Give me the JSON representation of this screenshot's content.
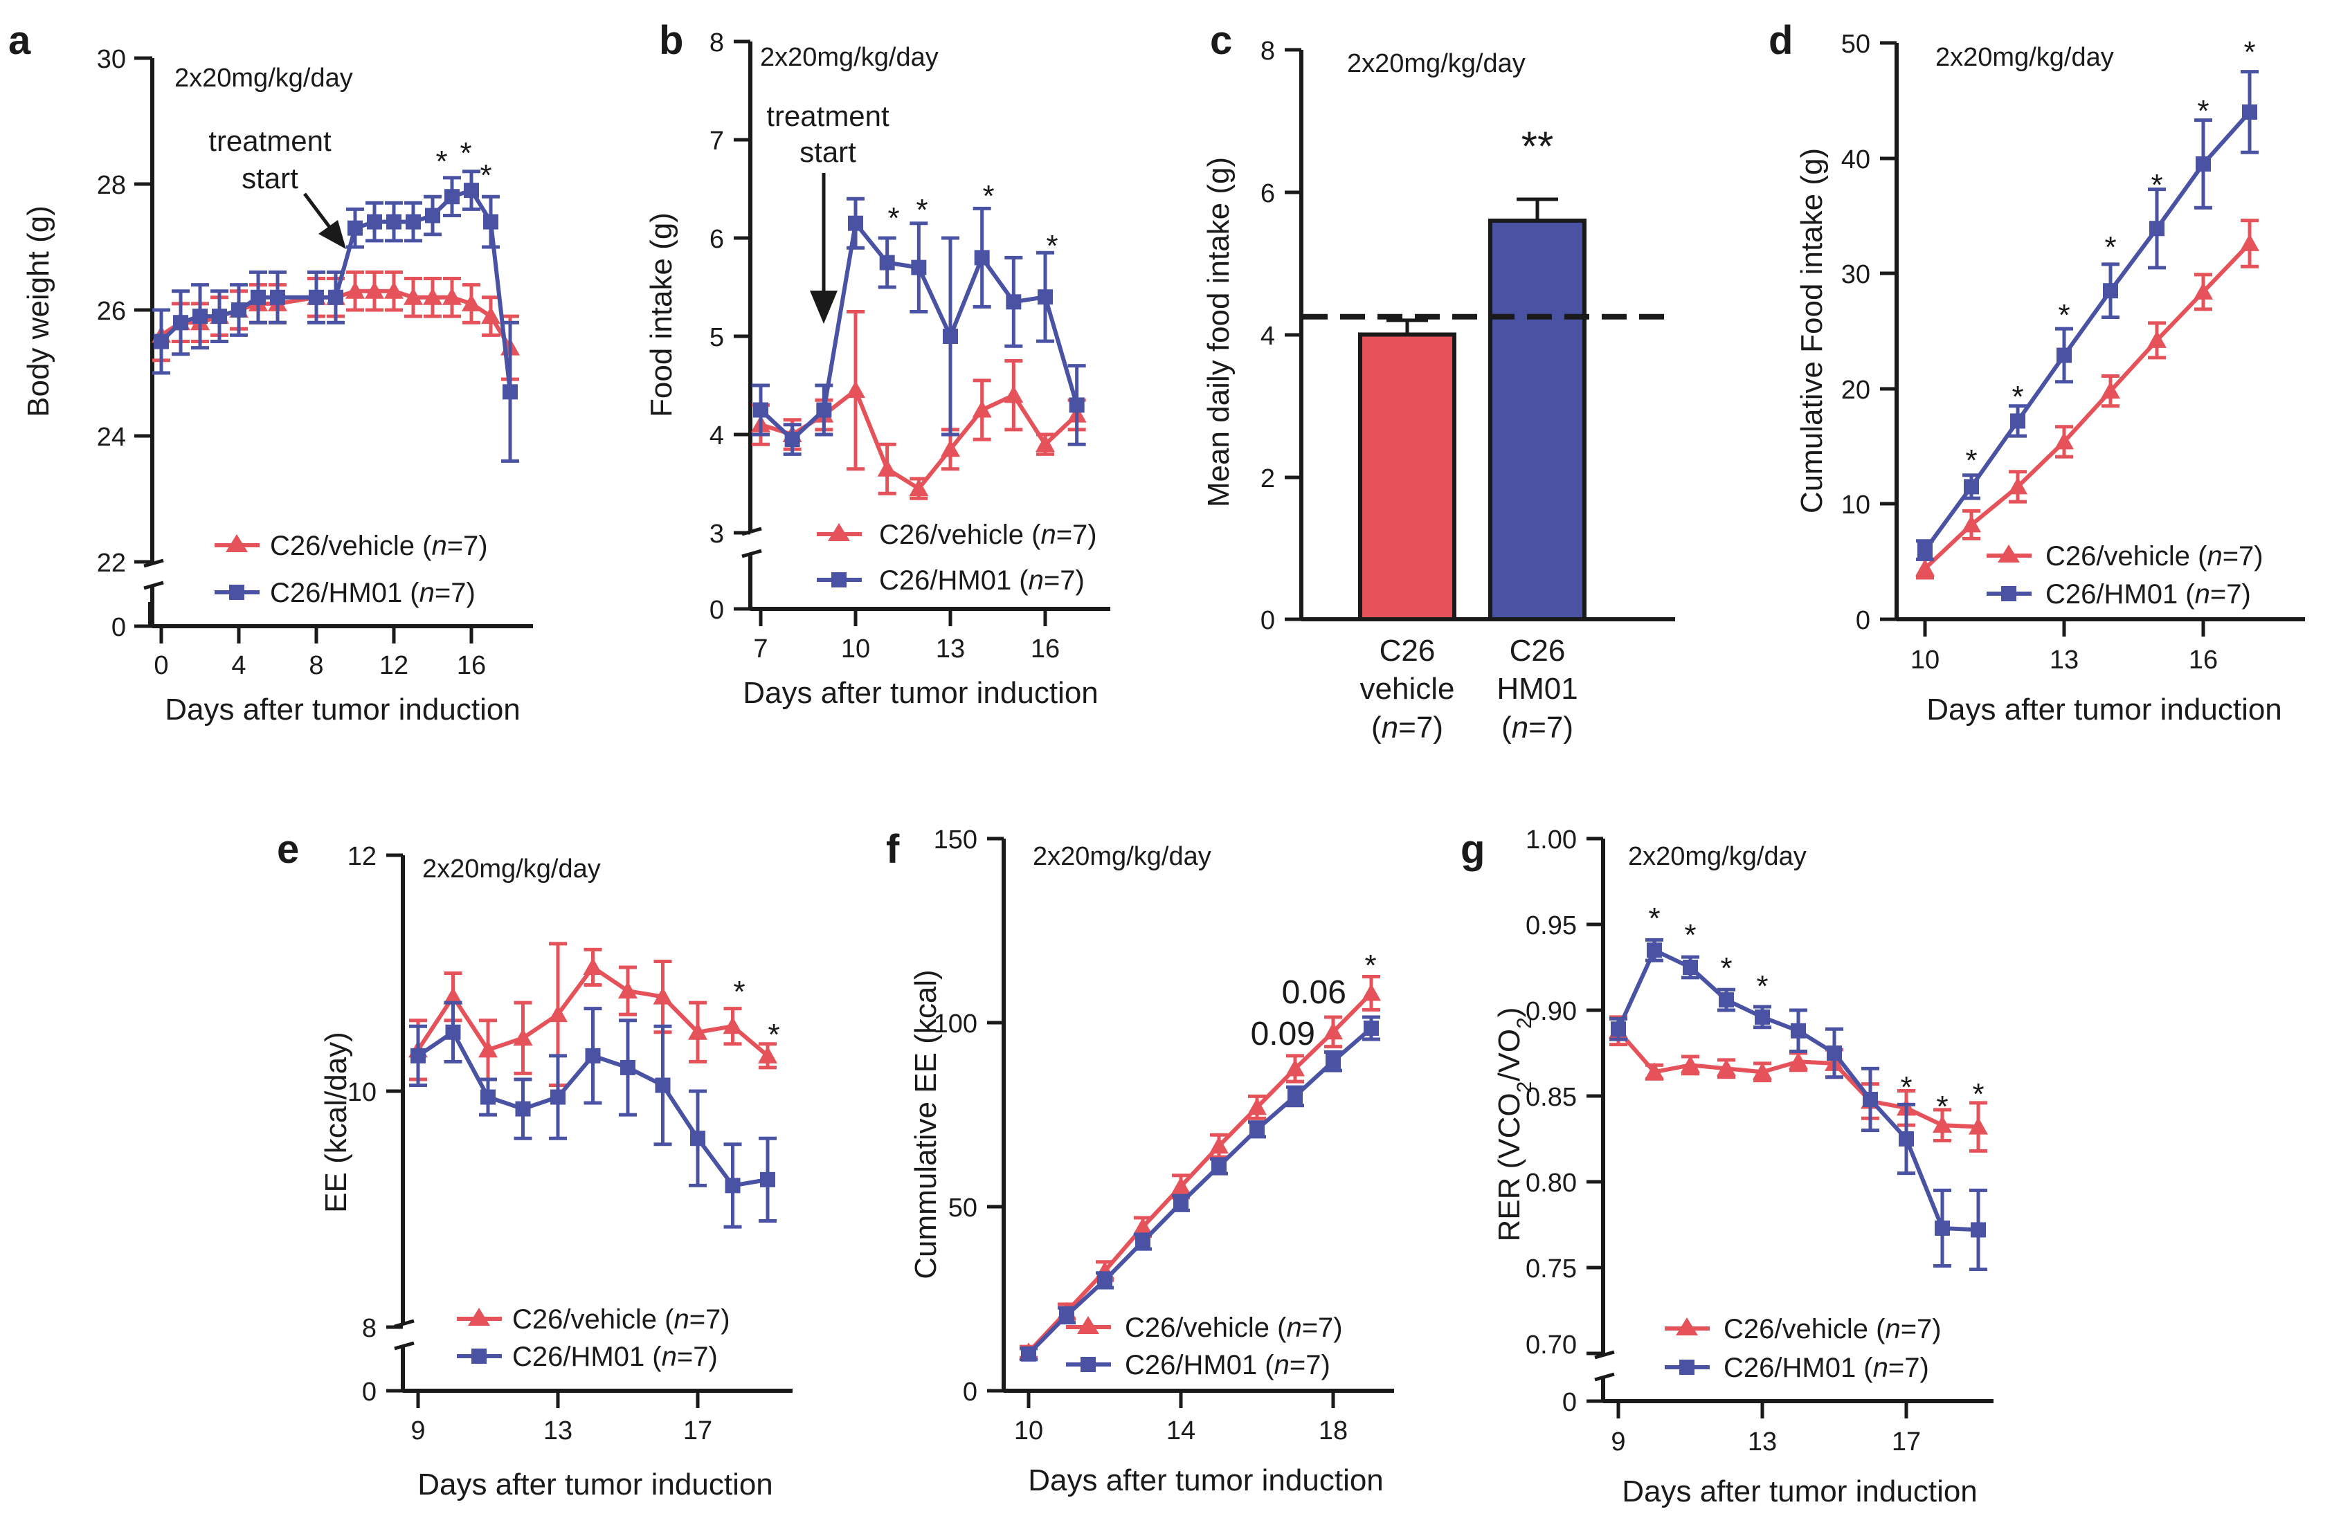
{
  "colors": {
    "vehicle": "#e5525a",
    "hm01": "#4a52a3",
    "axis": "#1a1a1a"
  },
  "charts": [
    {
      "id": "a",
      "type": "line",
      "letter": "a",
      "dose_label": "2x20mg/kg/day",
      "xlabel": "Days after tumor induction",
      "ylabel": "Body weight (g)",
      "yticks": [
        "30",
        "28",
        "26",
        "24",
        "22",
        "0"
      ],
      "xticks": [
        "0",
        "4",
        "8",
        "12",
        "16"
      ],
      "annotations": [
        "treatment",
        "start"
      ],
      "legend": [
        {
          "label": "C26/vehicle (",
          "n_italic": "n",
          "n_rest": "=7)"
        },
        {
          "label": "C26/HM01 (",
          "n_italic": "n",
          "n_rest": "=7)"
        }
      ],
      "series": [
        {
          "name": "C26/vehicle",
          "x": [
            0,
            1,
            2,
            3,
            4,
            5,
            6,
            8,
            9,
            10,
            11,
            12,
            13,
            14,
            15,
            16,
            17,
            18
          ],
          "y": [
            25.6,
            25.8,
            25.8,
            25.9,
            26.0,
            26.1,
            26.1,
            26.2,
            26.2,
            26.3,
            26.3,
            26.3,
            26.2,
            26.2,
            26.2,
            26.1,
            25.9,
            25.4
          ]
        },
        {
          "name": "C26/HM01",
          "x": [
            0,
            1,
            2,
            3,
            4,
            5,
            6,
            8,
            9,
            10,
            11,
            12,
            13,
            14,
            15,
            16,
            17,
            18
          ],
          "y": [
            25.5,
            25.8,
            25.9,
            25.9,
            26.0,
            26.2,
            26.2,
            26.2,
            26.2,
            27.3,
            27.4,
            27.4,
            27.4,
            27.5,
            27.8,
            27.9,
            27.4,
            24.7
          ]
        }
      ],
      "stars": [
        "*",
        "*",
        "*"
      ]
    },
    {
      "id": "b",
      "type": "line",
      "letter": "b",
      "dose_label": "2x20mg/kg/day",
      "xlabel": "Days after tumor induction",
      "ylabel": "Food intake (g)",
      "yticks": [
        "8",
        "7",
        "6",
        "5",
        "4",
        "3",
        "0"
      ],
      "xticks": [
        "7",
        "10",
        "13",
        "16"
      ],
      "annotations": [
        "treatment",
        "start"
      ],
      "legend": [
        {
          "label": "C26/vehicle (",
          "n_italic": "n",
          "n_rest": "=7)"
        },
        {
          "label": "C26/HM01 (",
          "n_italic": "n",
          "n_rest": "=7)"
        }
      ],
      "series": [
        {
          "name": "C26/vehicle",
          "x": [
            7,
            8,
            9,
            10,
            11,
            12,
            13,
            14,
            15,
            16,
            17
          ],
          "y": [
            4.1,
            4.0,
            4.2,
            4.45,
            3.65,
            3.45,
            3.85,
            4.25,
            4.4,
            3.9,
            4.2
          ]
        },
        {
          "name": "C26/HM01",
          "x": [
            7,
            8,
            9,
            10,
            11,
            12,
            13,
            14,
            15,
            16,
            17
          ],
          "y": [
            4.25,
            3.95,
            4.25,
            6.15,
            5.75,
            5.7,
            5.0,
            5.8,
            5.35,
            5.4,
            4.3
          ]
        }
      ],
      "stars": [
        "*",
        "*",
        "*",
        "*"
      ]
    },
    {
      "id": "c",
      "type": "bar",
      "letter": "c",
      "dose_label": "2x20mg/kg/day",
      "ylabel": "Mean daily food intake (g)",
      "yticks": [
        "8",
        "6",
        "4",
        "2",
        "0"
      ],
      "categories": [
        {
          "line1": "C26",
          "line2": "vehicle",
          "n_open": "(",
          "n_italic": "n",
          "n_rest": "=7)"
        },
        {
          "line1": "C26",
          "line2": "HM01",
          "n_open": "(",
          "n_italic": "n",
          "n_rest": "=7)"
        }
      ],
      "values": [
        4.0,
        5.6
      ],
      "errors": [
        0.2,
        0.3
      ],
      "reference_line": 4.25,
      "stars": [
        "**"
      ]
    },
    {
      "id": "d",
      "type": "line",
      "letter": "d",
      "dose_label": "2x20mg/kg/day",
      "xlabel": "Days after tumor induction",
      "ylabel": "Cumulative Food intake (g)",
      "yticks": [
        "50",
        "40",
        "30",
        "20",
        "10",
        "0"
      ],
      "xticks": [
        "10",
        "13",
        "16"
      ],
      "legend": [
        {
          "label": "C26/vehicle (",
          "n_italic": "n",
          "n_rest": "=7)"
        },
        {
          "label": "C26/HM01 (",
          "n_italic": "n",
          "n_rest": "=7)"
        }
      ],
      "series": [
        {
          "name": "C26/vehicle",
          "x": [
            10,
            11,
            12,
            13,
            14,
            15,
            16,
            17
          ],
          "y": [
            4.4,
            8.2,
            11.5,
            15.4,
            19.8,
            24.2,
            28.4,
            32.6
          ]
        },
        {
          "name": "C26/HM01",
          "x": [
            10,
            11,
            12,
            13,
            14,
            15,
            16,
            17
          ],
          "y": [
            6.0,
            11.5,
            17.2,
            22.9,
            28.5,
            33.9,
            39.5,
            44.0
          ]
        }
      ],
      "stars": [
        "*",
        "*",
        "*",
        "*",
        "*",
        "*",
        "*"
      ]
    },
    {
      "id": "e",
      "type": "line",
      "letter": "e",
      "dose_label": "2x20mg/kg/day",
      "xlabel": "Days after tumor induction",
      "ylabel": "EE (kcal/day)",
      "yticks": [
        "12",
        "10",
        "8",
        "0"
      ],
      "xticks": [
        "9",
        "13",
        "17"
      ],
      "legend": [
        {
          "label": "C26/vehicle (",
          "n_italic": "n",
          "n_rest": "=7)"
        },
        {
          "label": "C26/HM01 (",
          "n_italic": "n",
          "n_rest": "=7)"
        }
      ],
      "series": [
        {
          "name": "C26/vehicle",
          "x": [
            9,
            10,
            11,
            12,
            13,
            14,
            15,
            16,
            17,
            18,
            19
          ],
          "y": [
            10.35,
            10.8,
            10.35,
            10.45,
            10.65,
            11.05,
            10.85,
            10.8,
            10.5,
            10.55,
            10.3
          ]
        },
        {
          "name": "C26/HM01",
          "x": [
            9,
            10,
            11,
            12,
            13,
            14,
            15,
            16,
            17,
            18,
            19
          ],
          "y": [
            10.3,
            10.5,
            9.95,
            9.85,
            9.95,
            10.3,
            10.2,
            10.05,
            9.6,
            9.2,
            9.25
          ]
        }
      ],
      "stars": [
        "*",
        "*"
      ]
    },
    {
      "id": "f",
      "type": "line",
      "letter": "f",
      "dose_label": "2x20mg/kg/day",
      "xlabel": "Days after tumor induction",
      "ylabel": "Cummulative EE (kcal)",
      "yticks": [
        "150",
        "100",
        "50",
        "0"
      ],
      "xticks": [
        "10",
        "14",
        "18"
      ],
      "pvalues": [
        "0.06",
        "0.09"
      ],
      "legend": [
        {
          "label": "C26/vehicle (",
          "n_italic": "n",
          "n_rest": "=7)"
        },
        {
          "label": "C26/HM01 (",
          "n_italic": "n",
          "n_rest": "=7)"
        }
      ],
      "series": [
        {
          "name": "C26/vehicle",
          "x": [
            10,
            11,
            12,
            13,
            14,
            15,
            16,
            17,
            18,
            19
          ],
          "y": [
            10.5,
            21.5,
            32.5,
            44.5,
            55.5,
            66.5,
            77.0,
            87.5,
            97.5,
            108.0
          ]
        },
        {
          "name": "C26/HM01",
          "x": [
            10,
            11,
            12,
            13,
            14,
            15,
            16,
            17,
            18,
            19
          ],
          "y": [
            10.0,
            20.5,
            30.0,
            40.5,
            51.0,
            61.0,
            71.0,
            80.0,
            89.5,
            98.5
          ]
        }
      ],
      "stars": [
        "*"
      ]
    },
    {
      "id": "g",
      "type": "line",
      "letter": "g",
      "dose_label": "2x20mg/kg/day",
      "xlabel": "Days after tumor induction",
      "ylabel_main": "RER (VCO",
      "ylabel_sub1": "2",
      "ylabel_mid": "/VO",
      "ylabel_sub2": "2",
      "ylabel_end": ")",
      "yticks": [
        "1.00",
        "0.95",
        "0.90",
        "0.85",
        "0.80",
        "0.75",
        "0.70",
        "0"
      ],
      "xticks": [
        "9",
        "13",
        "17"
      ],
      "legend": [
        {
          "label": "C26/vehicle (",
          "n_italic": "n",
          "n_rest": "=7)"
        },
        {
          "label": "C26/HM01 (",
          "n_italic": "n",
          "n_rest": "=7)"
        }
      ],
      "series": [
        {
          "name": "C26/vehicle",
          "x": [
            9,
            10,
            11,
            12,
            13,
            14,
            15,
            16,
            17,
            18,
            19
          ],
          "y": [
            0.888,
            0.864,
            0.868,
            0.866,
            0.864,
            0.87,
            0.869,
            0.847,
            0.843,
            0.833,
            0.832
          ]
        },
        {
          "name": "C26/HM01",
          "x": [
            9,
            10,
            11,
            12,
            13,
            14,
            15,
            16,
            17,
            18,
            19
          ],
          "y": [
            0.889,
            0.935,
            0.925,
            0.906,
            0.896,
            0.888,
            0.875,
            0.848,
            0.825,
            0.773,
            0.772
          ]
        }
      ],
      "stars": [
        "*",
        "*",
        "*",
        "*",
        "*",
        "*",
        "*"
      ]
    }
  ]
}
